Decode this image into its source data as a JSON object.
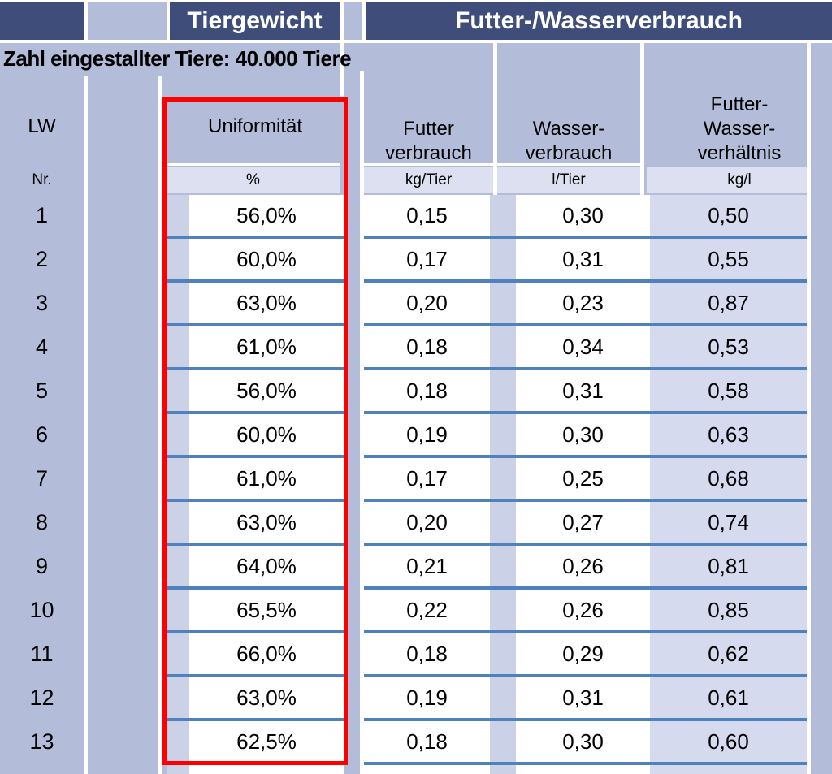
{
  "banner": {
    "tiergewicht": "Tiergewicht",
    "futter_wasser": "Futter-/Wasserverbrauch"
  },
  "subtitle": "Zahl eingestallter Tiere: 40.000 Tiere",
  "columns": {
    "lw": {
      "label": "LW",
      "unit": "Nr."
    },
    "uniformitaet": {
      "label": "Uniformität",
      "unit": "%"
    },
    "futter": {
      "line1": "Futter",
      "line2": "verbrauch",
      "unit": "kg/Tier"
    },
    "wasser": {
      "line1": "Wasser-",
      "line2": "verbrauch",
      "unit": "l/Tier"
    },
    "futter_wasser": {
      "line1": "Futter-",
      "line2": "Wasser-",
      "line3": "verhältnis",
      "unit": "kg/l"
    }
  },
  "rows": [
    {
      "lw": "1",
      "uniformitaet": "56,0%",
      "futter": "0,15",
      "wasser": "0,30",
      "fw_ratio": "0,50"
    },
    {
      "lw": "2",
      "uniformitaet": "60,0%",
      "futter": "0,17",
      "wasser": "0,31",
      "fw_ratio": "0,55"
    },
    {
      "lw": "3",
      "uniformitaet": "63,0%",
      "futter": "0,20",
      "wasser": "0,23",
      "fw_ratio": "0,87"
    },
    {
      "lw": "4",
      "uniformitaet": "61,0%",
      "futter": "0,18",
      "wasser": "0,34",
      "fw_ratio": "0,53"
    },
    {
      "lw": "5",
      "uniformitaet": "56,0%",
      "futter": "0,18",
      "wasser": "0,31",
      "fw_ratio": "0,58"
    },
    {
      "lw": "6",
      "uniformitaet": "60,0%",
      "futter": "0,19",
      "wasser": "0,30",
      "fw_ratio": "0,63"
    },
    {
      "lw": "7",
      "uniformitaet": "61,0%",
      "futter": "0,17",
      "wasser": "0,25",
      "fw_ratio": "0,68"
    },
    {
      "lw": "8",
      "uniformitaet": "63,0%",
      "futter": "0,20",
      "wasser": "0,27",
      "fw_ratio": "0,74"
    },
    {
      "lw": "9",
      "uniformitaet": "64,0%",
      "futter": "0,21",
      "wasser": "0,26",
      "fw_ratio": "0,81"
    },
    {
      "lw": "10",
      "uniformitaet": "65,5%",
      "futter": "0,22",
      "wasser": "0,26",
      "fw_ratio": "0,85"
    },
    {
      "lw": "11",
      "uniformitaet": "66,0%",
      "futter": "0,18",
      "wasser": "0,29",
      "fw_ratio": "0,62"
    },
    {
      "lw": "12",
      "uniformitaet": "63,0%",
      "futter": "0,19",
      "wasser": "0,31",
      "fw_ratio": "0,61"
    },
    {
      "lw": "13",
      "uniformitaet": "62,5%",
      "futter": "0,18",
      "wasser": "0,30",
      "fw_ratio": "0,60"
    }
  ],
  "colors": {
    "header_navy": "#3E4D7A",
    "background_lavender": "#B3BCD9",
    "spacer_strip": "#CBD2E8",
    "data_cell_white": "#FFFFFF",
    "ratio_cell_light": "#D6DAEE",
    "unit_cell_light": "#DCE0F1",
    "row_separator_blue": "#4F81BD",
    "highlight_box_red": "#FF0000"
  }
}
